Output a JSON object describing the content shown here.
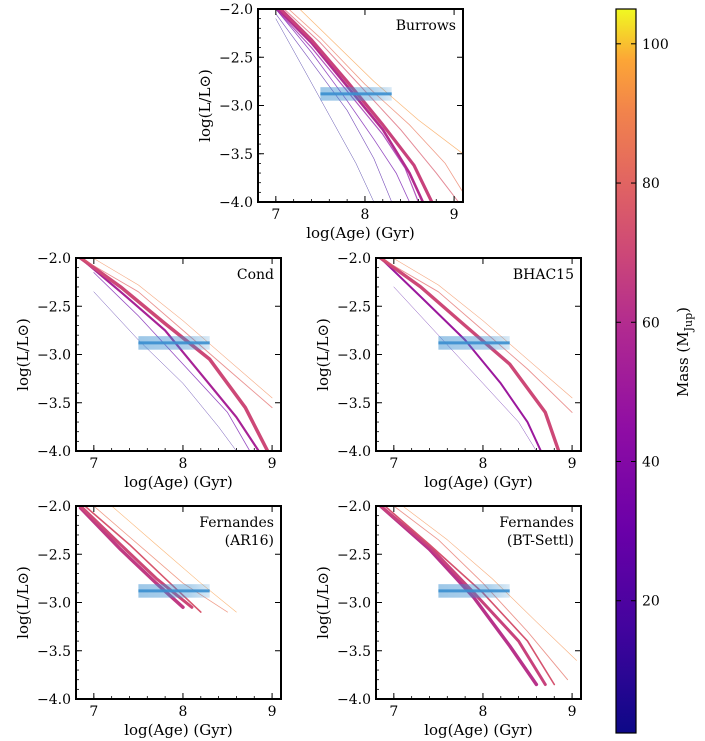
{
  "figure": {
    "colorbar": {
      "label": "Mass (M",
      "label_sub": "Jup",
      "label_close": ")",
      "range": [
        1,
        105
      ],
      "ticks": [
        "20",
        "40",
        "60",
        "80",
        "100"
      ],
      "tick_values": [
        20,
        40,
        60,
        80,
        100
      ],
      "colormap": "plasma"
    }
  },
  "chart_data": [
    {
      "type": "line",
      "id": "burrows",
      "title_lines": [
        "Burrows"
      ],
      "xlabel": "log(Age) (Gyr)",
      "ylabel": "log(L/L⊙)",
      "xlim": [
        6.8,
        9.1
      ],
      "ylim": [
        -4.0,
        -2.0
      ],
      "xticks": [
        "7",
        "8",
        "9"
      ],
      "yticks": [
        "−2.0",
        "−2.5",
        "−3.0",
        "−3.5",
        "−4.0"
      ],
      "band": {
        "x_range": [
          7.5,
          8.3
        ],
        "y": -2.88,
        "y_halfwidth": 0.07,
        "color": "#3a8fd0"
      },
      "series": [
        {
          "mass": 5,
          "width": 0.5,
          "x": [
            7.0,
            7.3,
            7.6,
            7.9,
            8.1
          ],
          "y": [
            -2.1,
            -2.6,
            -3.1,
            -3.6,
            -4.0
          ]
        },
        {
          "mass": 15,
          "width": 0.6,
          "x": [
            7.0,
            7.4,
            7.8,
            8.1,
            8.3
          ],
          "y": [
            -2.05,
            -2.55,
            -3.05,
            -3.55,
            -4.0
          ]
        },
        {
          "mass": 30,
          "width": 0.8,
          "x": [
            7.0,
            7.4,
            7.8,
            8.1,
            8.35,
            8.5
          ],
          "y": [
            -2.0,
            -2.45,
            -2.95,
            -3.35,
            -3.7,
            -4.0
          ]
        },
        {
          "mass": 45,
          "width": 1.2,
          "x": [
            7.0,
            7.4,
            7.8,
            8.2,
            8.45,
            8.6
          ],
          "y": [
            -2.0,
            -2.4,
            -2.85,
            -3.3,
            -3.65,
            -4.0
          ]
        },
        {
          "mass": 60,
          "width": 2.6,
          "x": [
            7.0,
            7.4,
            7.8,
            8.2,
            8.5,
            8.65
          ],
          "y": [
            -1.98,
            -2.35,
            -2.8,
            -3.25,
            -3.7,
            -4.0
          ]
        },
        {
          "mass": 68,
          "width": 3.2,
          "x": [
            7.0,
            7.4,
            7.8,
            8.2,
            8.55,
            8.75
          ],
          "y": [
            -1.95,
            -2.32,
            -2.75,
            -3.2,
            -3.62,
            -4.0
          ]
        },
        {
          "mass": 76,
          "width": 1.0,
          "x": [
            7.0,
            7.5,
            8.0,
            8.4,
            8.8,
            9.05
          ],
          "y": [
            -1.92,
            -2.35,
            -2.85,
            -3.25,
            -3.7,
            -4.0
          ]
        },
        {
          "mass": 85,
          "width": 0.8,
          "x": [
            7.0,
            7.5,
            8.0,
            8.5,
            8.9,
            9.1
          ],
          "y": [
            -1.88,
            -2.3,
            -2.78,
            -3.2,
            -3.6,
            -3.9
          ]
        },
        {
          "mass": 95,
          "width": 0.7,
          "x": [
            7.1,
            7.6,
            8.1,
            8.6,
            9.1
          ],
          "y": [
            -1.85,
            -2.3,
            -2.75,
            -3.15,
            -3.5
          ]
        }
      ]
    },
    {
      "type": "line",
      "id": "cond",
      "title_lines": [
        "Cond"
      ],
      "xlabel": "log(Age) (Gyr)",
      "ylabel": "log(L/L⊙)",
      "xlim": [
        6.8,
        9.1
      ],
      "ylim": [
        -4.0,
        -2.0
      ],
      "xticks": [
        "7",
        "8",
        "9"
      ],
      "yticks": [
        "−2.0",
        "−2.5",
        "−3.0",
        "−3.5",
        "−4.0"
      ],
      "band": {
        "x_range": [
          7.5,
          8.3
        ],
        "y": -2.88,
        "y_halfwidth": 0.07,
        "color": "#3a8fd0"
      },
      "series": [
        {
          "mass": 10,
          "width": 0.5,
          "x": [
            7.0,
            7.5,
            8.0,
            8.4,
            8.6
          ],
          "y": [
            -2.35,
            -2.85,
            -3.3,
            -3.75,
            -4.0
          ]
        },
        {
          "mass": 30,
          "width": 0.8,
          "x": [
            7.0,
            7.5,
            8.0,
            8.5,
            8.75
          ],
          "y": [
            -2.15,
            -2.6,
            -3.1,
            -3.6,
            -4.0
          ]
        },
        {
          "mass": 55,
          "width": 2.2,
          "x": [
            6.85,
            7.3,
            7.8,
            8.2,
            8.6,
            8.85
          ],
          "y": [
            -2.0,
            -2.35,
            -2.75,
            -3.2,
            -3.65,
            -4.0
          ]
        },
        {
          "mass": 70,
          "width": 3.5,
          "x": [
            6.85,
            7.3,
            7.8,
            8.3,
            8.7,
            8.95
          ],
          "y": [
            -2.0,
            -2.3,
            -2.68,
            -3.05,
            -3.55,
            -4.0
          ]
        },
        {
          "mass": 80,
          "width": 0.9,
          "x": [
            6.85,
            7.5,
            8.0,
            8.5,
            9.0
          ],
          "y": [
            -2.0,
            -2.35,
            -2.75,
            -3.15,
            -3.55
          ]
        },
        {
          "mass": 90,
          "width": 0.6,
          "x": [
            6.9,
            7.5,
            8.0,
            8.5,
            9.0
          ],
          "y": [
            -1.95,
            -2.28,
            -2.65,
            -3.05,
            -3.45
          ]
        }
      ]
    },
    {
      "type": "line",
      "id": "bhac15",
      "title_lines": [
        "BHAC15"
      ],
      "xlabel": "log(Age) (Gyr)",
      "ylabel": "log(L/L⊙)",
      "xlim": [
        6.8,
        9.1
      ],
      "ylim": [
        -4.0,
        -2.0
      ],
      "xticks": [
        "7",
        "8",
        "9"
      ],
      "yticks": [
        "−2.0",
        "−2.5",
        "−3.0",
        "−3.5",
        "−4.0"
      ],
      "band": {
        "x_range": [
          7.5,
          8.3
        ],
        "y": -2.88,
        "y_halfwidth": 0.07,
        "color": "#3a8fd0"
      },
      "series": [
        {
          "mass": 20,
          "width": 0.5,
          "x": [
            7.0,
            7.5,
            8.0,
            8.4,
            8.6
          ],
          "y": [
            -2.3,
            -2.8,
            -3.3,
            -3.7,
            -4.0
          ]
        },
        {
          "mass": 50,
          "width": 2.0,
          "x": [
            6.85,
            7.3,
            7.8,
            8.2,
            8.5,
            8.65
          ],
          "y": [
            -2.0,
            -2.4,
            -2.85,
            -3.3,
            -3.7,
            -4.0
          ]
        },
        {
          "mass": 70,
          "width": 3.4,
          "x": [
            6.85,
            7.3,
            7.8,
            8.3,
            8.7,
            8.85
          ],
          "y": [
            -2.0,
            -2.3,
            -2.7,
            -3.1,
            -3.6,
            -4.0
          ]
        },
        {
          "mass": 80,
          "width": 0.9,
          "x": [
            6.85,
            7.5,
            8.0,
            8.5,
            9.0
          ],
          "y": [
            -2.0,
            -2.35,
            -2.75,
            -3.15,
            -3.6
          ]
        },
        {
          "mass": 90,
          "width": 0.6,
          "x": [
            6.9,
            7.5,
            8.0,
            8.5,
            9.0
          ],
          "y": [
            -1.95,
            -2.28,
            -2.65,
            -3.05,
            -3.45
          ]
        }
      ]
    },
    {
      "type": "line",
      "id": "fernandes_ar16",
      "title_lines": [
        "Fernandes",
        "(AR16)"
      ],
      "xlabel": "log(Age) (Gyr)",
      "ylabel": "log(L/L⊙)",
      "xlim": [
        6.8,
        9.1
      ],
      "ylim": [
        -4.0,
        -2.0
      ],
      "xticks": [
        "7",
        "8",
        "9"
      ],
      "yticks": [
        "−2.0",
        "−2.5",
        "−3.0",
        "−3.5",
        "−4.0"
      ],
      "band": {
        "x_range": [
          7.5,
          8.3
        ],
        "y": -2.88,
        "y_halfwidth": 0.07,
        "color": "#3a8fd0"
      },
      "series": [
        {
          "mass": 65,
          "width": 3.4,
          "x": [
            6.85,
            7.3,
            7.7,
            8.0
          ],
          "y": [
            -2.02,
            -2.45,
            -2.8,
            -3.05
          ]
        },
        {
          "mass": 70,
          "width": 3.0,
          "x": [
            6.85,
            7.3,
            7.7,
            8.1
          ],
          "y": [
            -2.0,
            -2.4,
            -2.75,
            -3.05
          ]
        },
        {
          "mass": 75,
          "width": 1.6,
          "x": [
            6.9,
            7.4,
            7.8,
            8.2
          ],
          "y": [
            -2.0,
            -2.4,
            -2.75,
            -3.1
          ]
        },
        {
          "mass": 85,
          "width": 0.8,
          "x": [
            7.0,
            7.5,
            8.0,
            8.5
          ],
          "y": [
            -2.0,
            -2.4,
            -2.8,
            -3.1
          ]
        },
        {
          "mass": 95,
          "width": 0.6,
          "x": [
            7.2,
            7.7,
            8.2,
            8.6
          ],
          "y": [
            -2.0,
            -2.4,
            -2.8,
            -3.1
          ]
        }
      ]
    },
    {
      "type": "line",
      "id": "fernandes_btsettl",
      "title_lines": [
        "Fernandes",
        "(BT-Settl)"
      ],
      "xlabel": "log(Age) (Gyr)",
      "ylabel": "log(L/L⊙)",
      "xlim": [
        6.8,
        9.1
      ],
      "ylim": [
        -4.0,
        -2.0
      ],
      "xticks": [
        "7",
        "8",
        "9"
      ],
      "yticks": [
        "−2.0",
        "−2.5",
        "−3.0",
        "−3.5",
        "−4.0"
      ],
      "band": {
        "x_range": [
          7.5,
          8.3
        ],
        "y": -2.88,
        "y_halfwidth": 0.07,
        "color": "#3a8fd0"
      },
      "series": [
        {
          "mass": 62,
          "width": 3.4,
          "x": [
            6.85,
            7.4,
            7.9,
            8.3,
            8.6
          ],
          "y": [
            -2.0,
            -2.45,
            -2.95,
            -3.45,
            -3.85
          ]
        },
        {
          "mass": 68,
          "width": 3.0,
          "x": [
            6.85,
            7.4,
            7.9,
            8.4,
            8.7
          ],
          "y": [
            -2.0,
            -2.42,
            -2.9,
            -3.4,
            -3.85
          ]
        },
        {
          "mass": 74,
          "width": 1.6,
          "x": [
            6.9,
            7.4,
            8.0,
            8.5,
            8.8
          ],
          "y": [
            -2.0,
            -2.4,
            -2.9,
            -3.4,
            -3.85
          ]
        },
        {
          "mass": 82,
          "width": 0.9,
          "x": [
            7.0,
            7.5,
            8.0,
            8.5,
            8.95
          ],
          "y": [
            -2.0,
            -2.35,
            -2.8,
            -3.3,
            -3.8
          ]
        },
        {
          "mass": 92,
          "width": 0.6,
          "x": [
            7.1,
            7.6,
            8.1,
            8.6,
            9.05
          ],
          "y": [
            -2.0,
            -2.35,
            -2.75,
            -3.2,
            -3.6
          ]
        }
      ]
    }
  ]
}
